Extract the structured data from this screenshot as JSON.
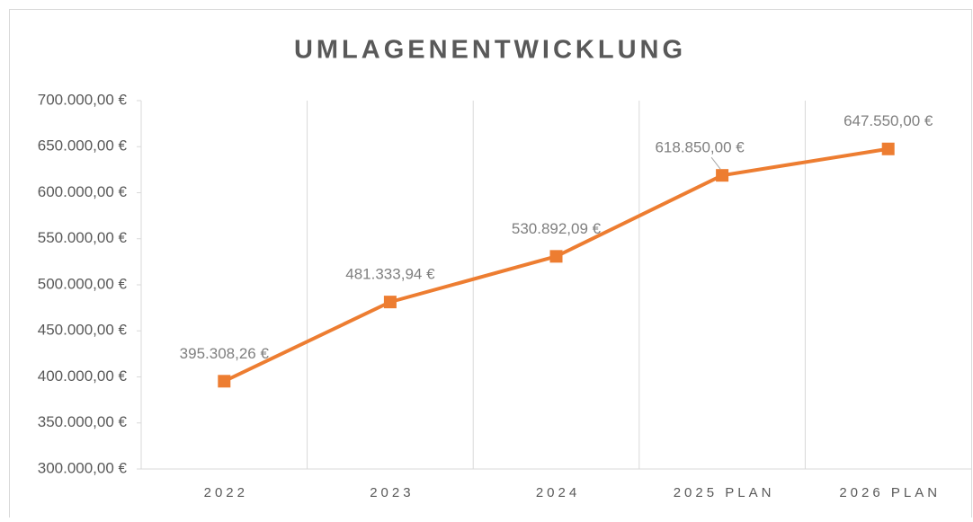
{
  "chart_data": {
    "type": "line",
    "title": "UMLAGENENTWICKLUNG",
    "categories": [
      "2022",
      "2023",
      "2024",
      "2025 PLAN",
      "2026 PLAN"
    ],
    "series": [
      {
        "name": "Umlage",
        "color": "#ed7d31",
        "values": [
          395308.26,
          481333.94,
          530892.09,
          618850.0,
          647550.0
        ],
        "value_labels": [
          "395.308,26 €",
          "481.333,94 €",
          "530.892,09 €",
          "618.850,00 €",
          "647.550,00 €"
        ]
      }
    ],
    "ylim": [
      300000,
      700000
    ],
    "yticks": [
      {
        "value": 300000,
        "label": "300.000,00 €"
      },
      {
        "value": 350000,
        "label": "350.000,00 €"
      },
      {
        "value": 400000,
        "label": "400.000,00 €"
      },
      {
        "value": 450000,
        "label": "450.000,00 €"
      },
      {
        "value": 500000,
        "label": "500.000,00 €"
      },
      {
        "value": 550000,
        "label": "550.000,00 €"
      },
      {
        "value": 600000,
        "label": "600.000,00 €"
      },
      {
        "value": 650000,
        "label": "650.000,00 €"
      },
      {
        "value": 700000,
        "label": "700.000,00 €"
      }
    ]
  }
}
